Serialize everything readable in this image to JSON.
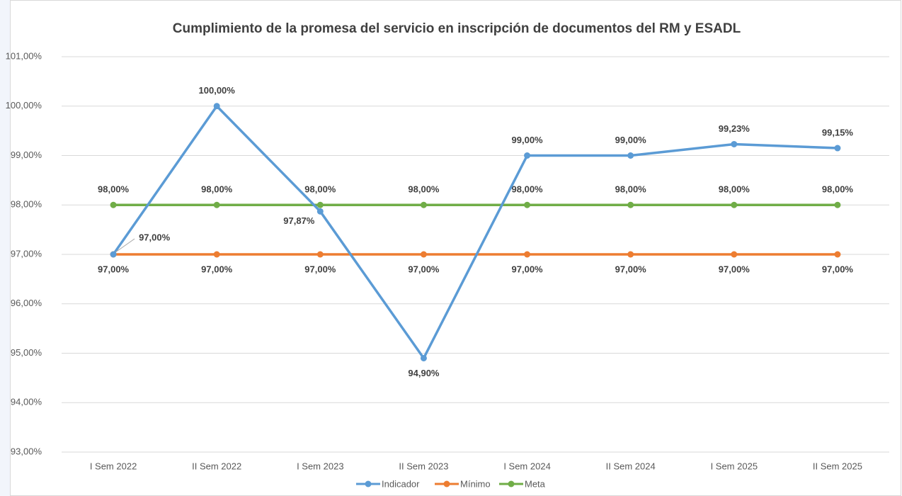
{
  "chart_data": {
    "type": "line",
    "title": "Cumplimiento de la promesa del servicio en inscripción de documentos del RM y ESADL",
    "categories": [
      "I Sem 2022",
      "II Sem 2022",
      "I Sem 2023",
      "II Sem 2023",
      "I Sem 2024",
      "II Sem 2024",
      "I Sem 2025",
      "II Sem 2025"
    ],
    "series": [
      {
        "name": "Indicador",
        "color": "#5b9bd5",
        "values": [
          97,
          100,
          97.87,
          94.9,
          99,
          99,
          99.23,
          99.15
        ],
        "value_labels": [
          "97,00%",
          "100,00%",
          "97,87%",
          "94,90%",
          "99,00%",
          "99,00%",
          "99,23%",
          "99,15%"
        ]
      },
      {
        "name": "Mínimo",
        "color": "#ed7d31",
        "values": [
          97,
          97,
          97,
          97,
          97,
          97,
          97,
          97
        ],
        "value_labels": [
          "97,00%",
          "97,00%",
          "97,00%",
          "97,00%",
          "97,00%",
          "97,00%",
          "97,00%",
          "97,00%"
        ]
      },
      {
        "name": "Meta",
        "color": "#70ad47",
        "values": [
          98,
          98,
          98,
          98,
          98,
          98,
          98,
          98
        ],
        "value_labels": [
          "98,00%",
          "98,00%",
          "98,00%",
          "98,00%",
          "98,00%",
          "98,00%",
          "98,00%",
          "98,00%"
        ]
      }
    ],
    "ylim": [
      93,
      101
    ],
    "yticks": [
      {
        "value": 93,
        "label": "93,00%"
      },
      {
        "value": 94,
        "label": "94,00%"
      },
      {
        "value": 95,
        "label": "95,00%"
      },
      {
        "value": 96,
        "label": "96,00%"
      },
      {
        "value": 97,
        "label": "97,00%"
      },
      {
        "value": 98,
        "label": "98,00%"
      },
      {
        "value": 99,
        "label": "99,00%"
      },
      {
        "value": 100,
        "label": "100,00%"
      },
      {
        "value": 101,
        "label": "101,00%"
      }
    ],
    "grid": true,
    "legend": "bottom"
  }
}
